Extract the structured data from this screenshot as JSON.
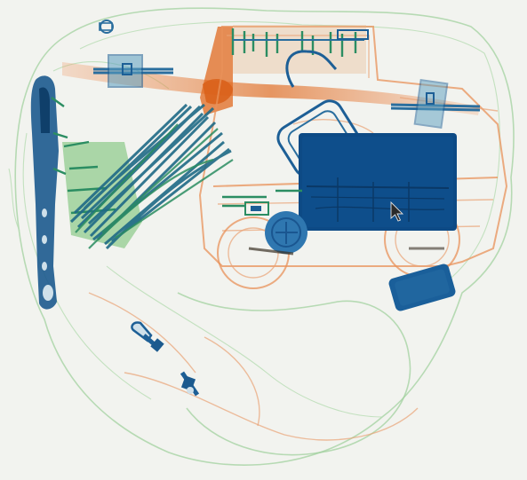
{
  "scan": {
    "background_color": "#f2f3ef",
    "organic_color": "#e8925a",
    "dense_organic_color": "#e06a20",
    "mixed_color": "#58b07a",
    "metal_color": "#1c5a8e",
    "dense_metal_color": "#0d4a85"
  },
  "objects": [
    "wire-bundle",
    "long-tool",
    "toy-car",
    "dense-box",
    "small-box",
    "circuit-board",
    "zipper-pulls"
  ],
  "cursor": {
    "icon": "mouse-pointer-icon"
  }
}
